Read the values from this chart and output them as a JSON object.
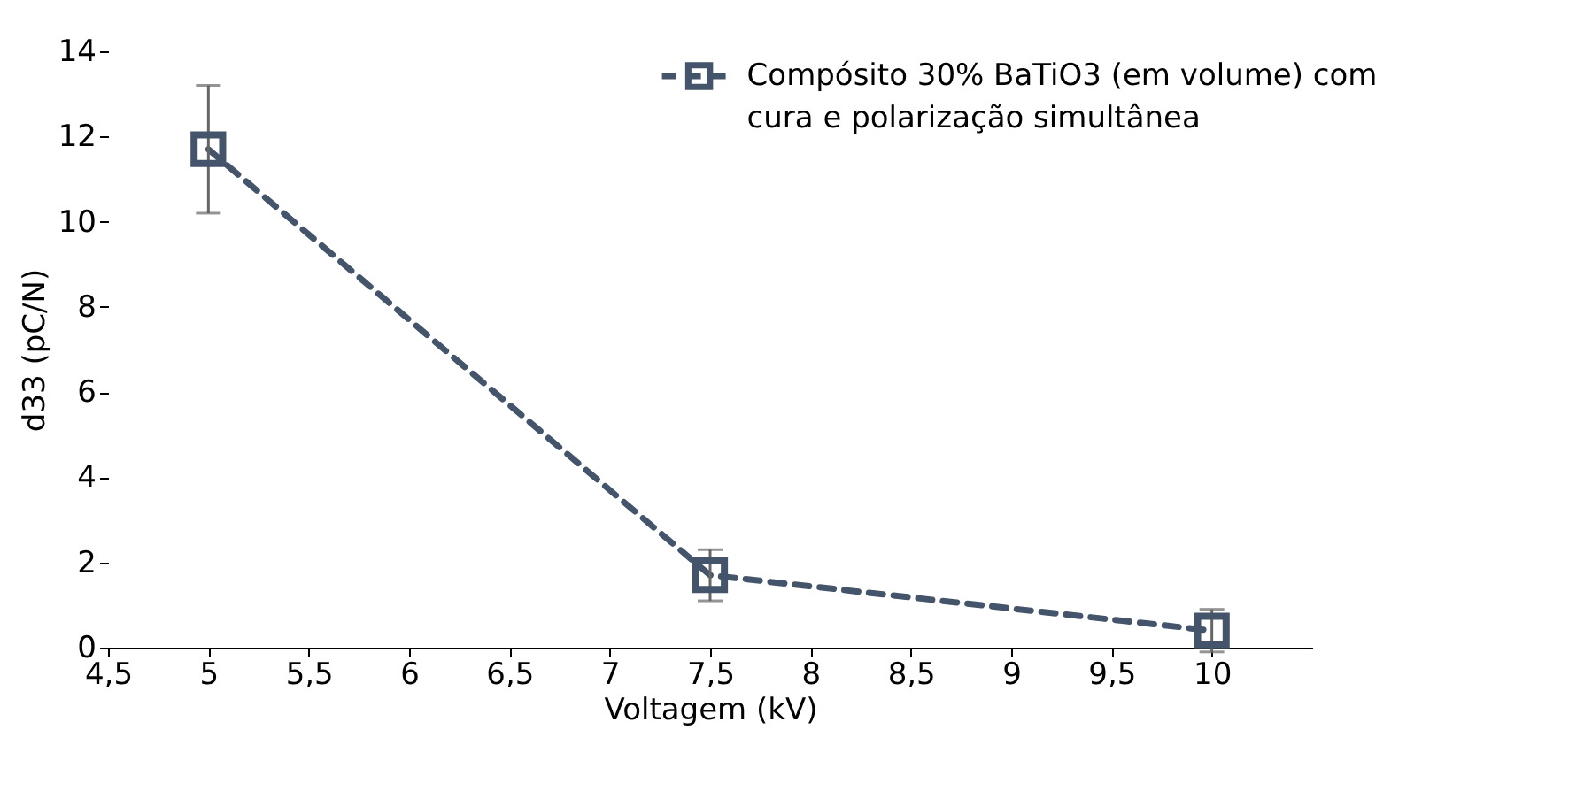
{
  "chart_data": {
    "type": "line",
    "xlabel": "Voltagem (kV)",
    "ylabel": "d33 (pC/N)",
    "x": [
      5,
      7.5,
      10
    ],
    "series": [
      {
        "name": "Compósito 30% BaTiO3 (em volume) com cura e polarização simultânea",
        "color": "#44546a",
        "values": [
          11.7,
          1.7,
          0.4
        ],
        "errors": [
          1.5,
          0.6,
          0.5
        ]
      }
    ],
    "xlim": [
      4.5,
      10.5
    ],
    "xticks": [
      {
        "value": 4.5,
        "label": "4,5"
      },
      5,
      {
        "value": 5.5,
        "label": "5,5"
      },
      6,
      {
        "value": 6.5,
        "label": "6,5"
      },
      7,
      {
        "value": 7.5,
        "label": "7,5"
      },
      8,
      {
        "value": 8.5,
        "label": "8,5"
      },
      9,
      {
        "value": 9.5,
        "label": "9,5"
      },
      10
    ],
    "ylim": [
      0,
      14
    ],
    "yticks": [
      0,
      2,
      4,
      6,
      8,
      10,
      12,
      14
    ],
    "marker": "square",
    "line_style": "dashed",
    "legend": "top right",
    "grid": false
  }
}
